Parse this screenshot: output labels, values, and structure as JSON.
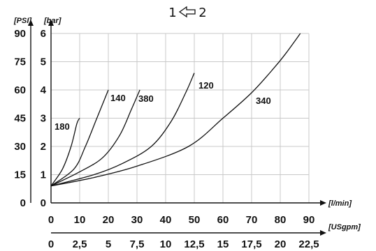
{
  "title": {
    "left": "1",
    "right": "2",
    "arrow_icon": "hollow-left-arrow-icon"
  },
  "chart_data": {
    "type": "line",
    "title": "",
    "grid": true,
    "x_primary": {
      "unit_label": "[l/min]",
      "min": 0,
      "max": 90,
      "ticks": [
        0,
        10,
        20,
        30,
        40,
        50,
        60,
        70,
        80,
        90
      ],
      "tick_labels": [
        "0",
        "10",
        "20",
        "30",
        "40",
        "50",
        "60",
        "70",
        "80",
        "90"
      ]
    },
    "x_secondary": {
      "unit_label": "[USgpm]",
      "ticks": [
        0,
        2.5,
        5,
        7.5,
        10,
        12.5,
        15,
        17.5,
        20,
        22.5
      ],
      "tick_labels": [
        "0",
        "2,5",
        "5",
        "7,5",
        "10",
        "12,5",
        "15",
        "17,5",
        "20",
        "22,5"
      ]
    },
    "y_primary": {
      "unit_label": "[bar]",
      "min": 0,
      "max": 6,
      "ticks": [
        0,
        1,
        2,
        3,
        4,
        5,
        6
      ],
      "tick_labels": [
        "0",
        "1",
        "2",
        "3",
        "4",
        "5",
        "6"
      ]
    },
    "y_secondary": {
      "unit_label": "[PSI]",
      "ticks": [
        0,
        15,
        30,
        45,
        60,
        75,
        90
      ],
      "tick_labels": [
        "0",
        "15",
        "30",
        "45",
        "60",
        "75",
        "90"
      ]
    },
    "series": [
      {
        "name": "180",
        "x": [
          0,
          4,
          7,
          9,
          10
        ],
        "y": [
          0.6,
          1.2,
          2.0,
          2.8,
          3.0
        ]
      },
      {
        "name": "140",
        "x": [
          0,
          8,
          12,
          16,
          20
        ],
        "y": [
          0.6,
          1.2,
          2.0,
          3.0,
          4.0
        ]
      },
      {
        "name": "380",
        "x": [
          0,
          10,
          18,
          24,
          28,
          31
        ],
        "y": [
          0.6,
          1.1,
          1.6,
          2.4,
          3.3,
          4.0
        ]
      },
      {
        "name": "120",
        "x": [
          0,
          15,
          25,
          35,
          42,
          47,
          50
        ],
        "y": [
          0.6,
          1.0,
          1.4,
          2.0,
          2.9,
          3.9,
          4.6
        ]
      },
      {
        "name": "340",
        "x": [
          0,
          15,
          30,
          48,
          60,
          70,
          78,
          82,
          87
        ],
        "y": [
          0.6,
          0.9,
          1.3,
          2.0,
          3.0,
          3.9,
          4.8,
          5.3,
          6.0
        ]
      }
    ]
  }
}
